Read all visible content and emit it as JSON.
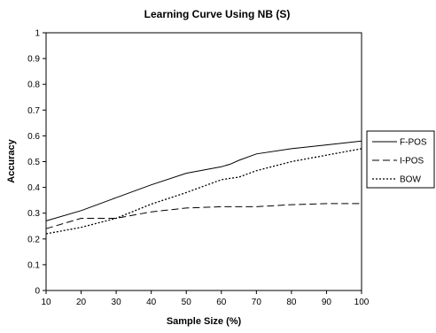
{
  "chart_data": {
    "type": "line",
    "title": "Learning Curve Using NB (S)",
    "xlabel": "Sample Size (%)",
    "ylabel": "Accuracy",
    "x": [
      10,
      20,
      30,
      40,
      50,
      60,
      62.5,
      65,
      70,
      80,
      90,
      100
    ],
    "xlim": [
      10,
      100
    ],
    "ylim": [
      0,
      1
    ],
    "xticks": [
      "10",
      "20",
      "30",
      "40",
      "50",
      "60",
      "70",
      "80",
      "90",
      "100"
    ],
    "yticks": [
      "0",
      "0.1",
      "0.2",
      "0.3",
      "0.4",
      "0.5",
      "0.6",
      "0.7",
      "0.8",
      "0.9",
      "1"
    ],
    "grid": false,
    "legend_position": "right",
    "series": [
      {
        "name": "F-POS",
        "style": "solid",
        "values": [
          0.27,
          0.31,
          0.36,
          0.41,
          0.455,
          0.48,
          0.49,
          0.505,
          0.53,
          0.55,
          0.565,
          0.58
        ]
      },
      {
        "name": "I-POS",
        "style": "dashed",
        "values": [
          0.24,
          0.28,
          0.28,
          0.305,
          0.32,
          0.325,
          0.325,
          0.325,
          0.325,
          0.333,
          0.337,
          0.337
        ]
      },
      {
        "name": "BOW",
        "style": "dotted",
        "values": [
          0.22,
          0.245,
          0.28,
          0.335,
          0.38,
          0.43,
          0.435,
          0.44,
          0.465,
          0.5,
          0.525,
          0.55
        ]
      }
    ]
  }
}
